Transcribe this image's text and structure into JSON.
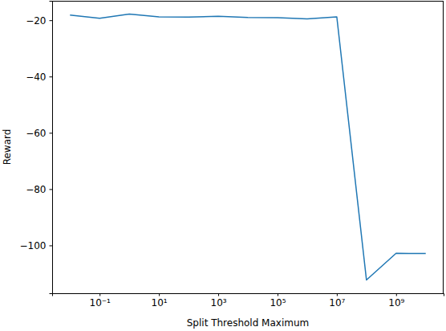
{
  "chart_data": {
    "type": "line",
    "x_label": "Split Threshold Maximum",
    "y_label": "Reward",
    "x": [
      0.01,
      0.1,
      1,
      10,
      100,
      1000,
      10000,
      100000,
      1000000,
      10000000,
      100000000,
      1000000000,
      10000000000
    ],
    "values": [
      -18.2,
      -19.3,
      -17.8,
      -18.8,
      -18.9,
      -18.6,
      -19.0,
      -19.1,
      -19.5,
      -18.8,
      -112.3,
      -102.8,
      -102.9
    ],
    "color": "#1f77b4",
    "log": "x",
    "xlim": [
      0.0025,
      40000000000
    ],
    "ylim": [
      -117.0,
      -13.1
    ],
    "xticks": [
      {
        "value": 0.1,
        "label": "10⁻¹"
      },
      {
        "value": 10,
        "label": "10¹"
      },
      {
        "value": 1000,
        "label": "10³"
      },
      {
        "value": 100000,
        "label": "10⁵"
      },
      {
        "value": 10000000,
        "label": "10⁷"
      },
      {
        "value": 1000000000,
        "label": "10⁹"
      }
    ],
    "yticks": [
      {
        "value": -100,
        "label": "−100"
      },
      {
        "value": -80,
        "label": "−80"
      },
      {
        "value": -60,
        "label": "−60"
      },
      {
        "value": -40,
        "label": "−40"
      },
      {
        "value": -20,
        "label": "−20"
      }
    ],
    "grid": false
  }
}
